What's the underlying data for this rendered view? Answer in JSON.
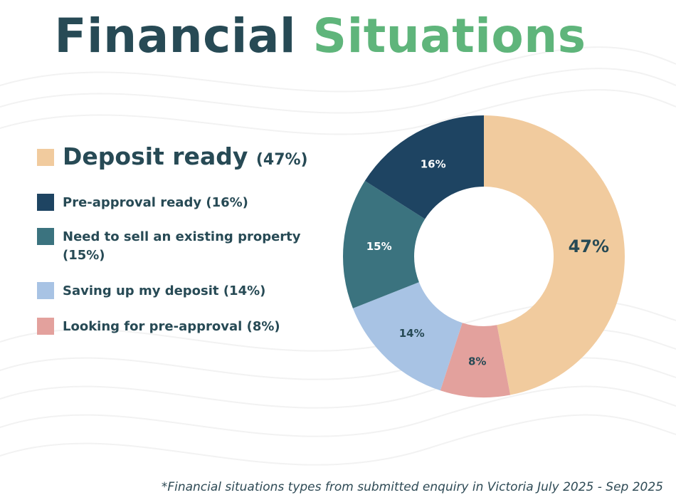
{
  "title": {
    "part1": "Financial",
    "part2": "Situations"
  },
  "legend": {
    "items": [
      {
        "label": "Deposit ready",
        "pct": "(47%)",
        "color": "#f1cb9e"
      },
      {
        "label": "Pre-approval ready",
        "pct": "(16%)",
        "color": "#1e4462"
      },
      {
        "label": "Need to sell an existing property",
        "pct": "(15%)",
        "color": "#3b737f"
      },
      {
        "label": "Saving up my deposit",
        "pct": "(14%)",
        "color": "#a8c3e4"
      },
      {
        "label": "Looking for pre-approval",
        "pct": "(8%)",
        "color": "#e3a19d"
      }
    ]
  },
  "chart_data": {
    "type": "pie",
    "donut": true,
    "categories": [
      "Deposit ready",
      "Looking for pre-approval",
      "Saving up my deposit",
      "Need to sell an existing property",
      "Pre-approval ready"
    ],
    "values": [
      47,
      8,
      14,
      15,
      16
    ],
    "labels": [
      "47%",
      "8%",
      "14%",
      "15%",
      "16%"
    ],
    "colors": [
      "#f1cb9e",
      "#e3a19d",
      "#a8c3e4",
      "#3b737f",
      "#1e4462"
    ],
    "label_colors": [
      "#274a55",
      "#274a55",
      "#274a55",
      "#ffffff",
      "#ffffff"
    ],
    "start": "top, clockwise",
    "legend_position": "left"
  },
  "footnote": "*Financial situations types from submitted enquiry in Victoria July 2025 - Sep 2025"
}
